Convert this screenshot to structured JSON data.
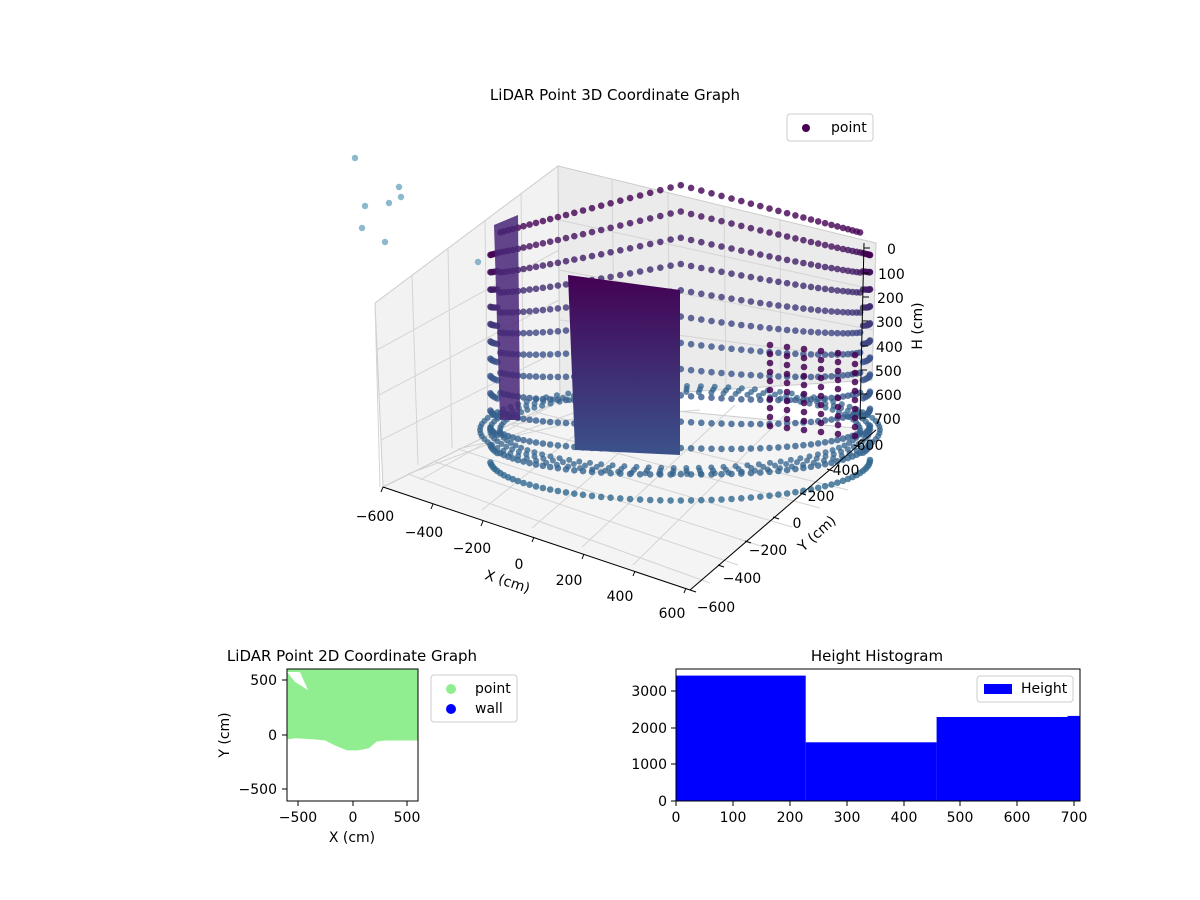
{
  "chart_data": [
    {
      "type": "scatter",
      "title": "LiDAR Point 3D Coordinate Graph",
      "xlabel": "X (cm)",
      "ylabel": "Y (cm)",
      "zlabel": "H (cm)",
      "legend": [
        "point"
      ],
      "legend_position": "top-right",
      "x_ticks": [
        "−600",
        "−400",
        "−200",
        "0",
        "200",
        "400",
        "600"
      ],
      "y_ticks": [
        "−600",
        "−400",
        "−200",
        "0",
        "200",
        "400",
        "600"
      ],
      "z_ticks": [
        "0",
        "100",
        "200",
        "300",
        "400",
        "500",
        "600",
        "700"
      ],
      "xlim": [
        -600,
        600
      ],
      "ylim": [
        -600,
        600
      ],
      "zlim": [
        0,
        700
      ],
      "z_inverted": true,
      "grid": true,
      "colors": {
        "colormap": "viridis",
        "dark": "#440154",
        "mid": "#3b528b",
        "light": "#31688e"
      }
    },
    {
      "type": "scatter",
      "title": "LiDAR Point 2D Coordinate Graph",
      "xlabel": "X (cm)",
      "ylabel": "Y (cm)",
      "x_ticks": [
        "−500",
        "0",
        "500"
      ],
      "y_ticks": [
        "500",
        "0",
        "−500"
      ],
      "xlim": [
        -600,
        600
      ],
      "ylim": [
        -600,
        600
      ],
      "series": [
        {
          "name": "point",
          "color": "#90ee90"
        },
        {
          "name": "wall",
          "color": "#0000ff"
        }
      ],
      "region_lower_edge": [
        {
          "x": -600,
          "y": -40
        },
        {
          "x": -520,
          "y": -30
        },
        {
          "x": -350,
          "y": -40
        },
        {
          "x": -250,
          "y": -50
        },
        {
          "x": -150,
          "y": -100
        },
        {
          "x": -50,
          "y": -140
        },
        {
          "x": 50,
          "y": -140
        },
        {
          "x": 150,
          "y": -120
        },
        {
          "x": 220,
          "y": -60
        },
        {
          "x": 300,
          "y": -50
        },
        {
          "x": 600,
          "y": -50
        }
      ],
      "legend_position": "outside right"
    },
    {
      "type": "bar",
      "title": "Height Histogram",
      "legend": [
        "Height"
      ],
      "legend_position": "top-right",
      "color": "#0000ff",
      "x_ticks": [
        "0",
        "100",
        "200",
        "300",
        "400",
        "500",
        "600",
        "700"
      ],
      "y_ticks": [
        "0",
        "1000",
        "2000",
        "3000"
      ],
      "xlim": [
        0,
        710
      ],
      "ylim": [
        0,
        3600
      ],
      "bins": [
        {
          "x0": 0,
          "x1": 228,
          "value": 3420
        },
        {
          "x0": 228,
          "x1": 458,
          "value": 1600
        },
        {
          "x0": 458,
          "x1": 688,
          "value": 2290
        },
        {
          "x0": 688,
          "x1": 710,
          "value": 2320
        }
      ]
    }
  ]
}
